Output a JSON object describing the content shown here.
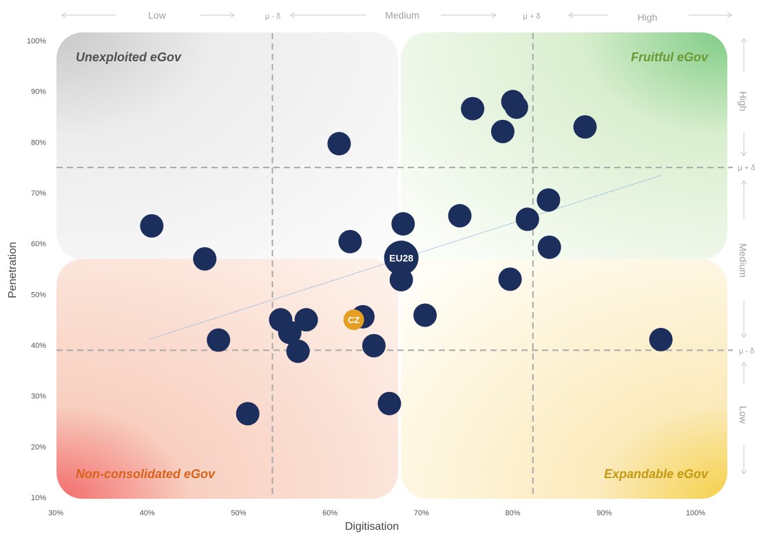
{
  "chart_data": {
    "type": "scatter",
    "xlabel": "Digitisation",
    "ylabel": "Penetration",
    "xlim": [
      30,
      100
    ],
    "ylim": [
      10,
      100
    ],
    "x_ticks": [
      "30%",
      "40%",
      "50%",
      "60%",
      "70%",
      "80%",
      "90%",
      "100%"
    ],
    "y_ticks": [
      "10%",
      "20%",
      "30%",
      "40%",
      "50%",
      "60%",
      "70%",
      "80%",
      "90%",
      "100%"
    ],
    "thresholds": {
      "x_low": 53.7,
      "x_high": 82.2,
      "y_low": 39,
      "y_high": 75
    },
    "bands": {
      "x": [
        "Low",
        "μ - δ",
        "Medium",
        "μ + δ",
        "High"
      ],
      "y": [
        "High",
        "μ + δ",
        "Medium",
        "μ - δ",
        "Low"
      ]
    },
    "quadrants": [
      {
        "name": "Unexploited eGov",
        "color": "#505050"
      },
      {
        "name": "Fruitful eGov",
        "color": "#6a9a34"
      },
      {
        "name": "Non-consolidated eGov",
        "color": "#d9621a"
      },
      {
        "name": "Expandable eGov",
        "color": "#c39a12"
      }
    ],
    "trendline": {
      "x": [
        40.3,
        96.3
      ],
      "y": [
        41.2,
        73.5
      ],
      "color": "#8fb4dd"
    },
    "points": [
      {
        "x": 40.5,
        "y": 63.5
      },
      {
        "x": 46.3,
        "y": 57
      },
      {
        "x": 47.8,
        "y": 41
      },
      {
        "x": 51,
        "y": 26.5
      },
      {
        "x": 54.6,
        "y": 45
      },
      {
        "x": 55.6,
        "y": 42.5
      },
      {
        "x": 56.5,
        "y": 38.8
      },
      {
        "x": 57.4,
        "y": 45
      },
      {
        "x": 61,
        "y": 79.7
      },
      {
        "x": 62.2,
        "y": 60.4
      },
      {
        "x": 63.6,
        "y": 45.6
      },
      {
        "x": 64.8,
        "y": 39.9
      },
      {
        "x": 66.5,
        "y": 28.5
      },
      {
        "x": 67.8,
        "y": 52.9
      },
      {
        "x": 68,
        "y": 63.9
      },
      {
        "x": 70.4,
        "y": 45.9
      },
      {
        "x": 74.2,
        "y": 65.5
      },
      {
        "x": 75.6,
        "y": 86.6
      },
      {
        "x": 78.9,
        "y": 82.1
      },
      {
        "x": 79.7,
        "y": 53
      },
      {
        "x": 80,
        "y": 88
      },
      {
        "x": 80.4,
        "y": 86.9
      },
      {
        "x": 81.6,
        "y": 64.8
      },
      {
        "x": 83.9,
        "y": 68.6
      },
      {
        "x": 84,
        "y": 59.3
      },
      {
        "x": 87.9,
        "y": 83
      },
      {
        "x": 96.2,
        "y": 41.1
      }
    ],
    "highlights": [
      {
        "label": "EU28",
        "x": 67.8,
        "y": 57.2,
        "color": "#1b2e5c",
        "size": "large"
      },
      {
        "label": "CZ",
        "x": 62.6,
        "y": 45,
        "color": "#e5a023",
        "size": "small"
      }
    ],
    "point_color": "#1b2e5c",
    "grid": false
  }
}
